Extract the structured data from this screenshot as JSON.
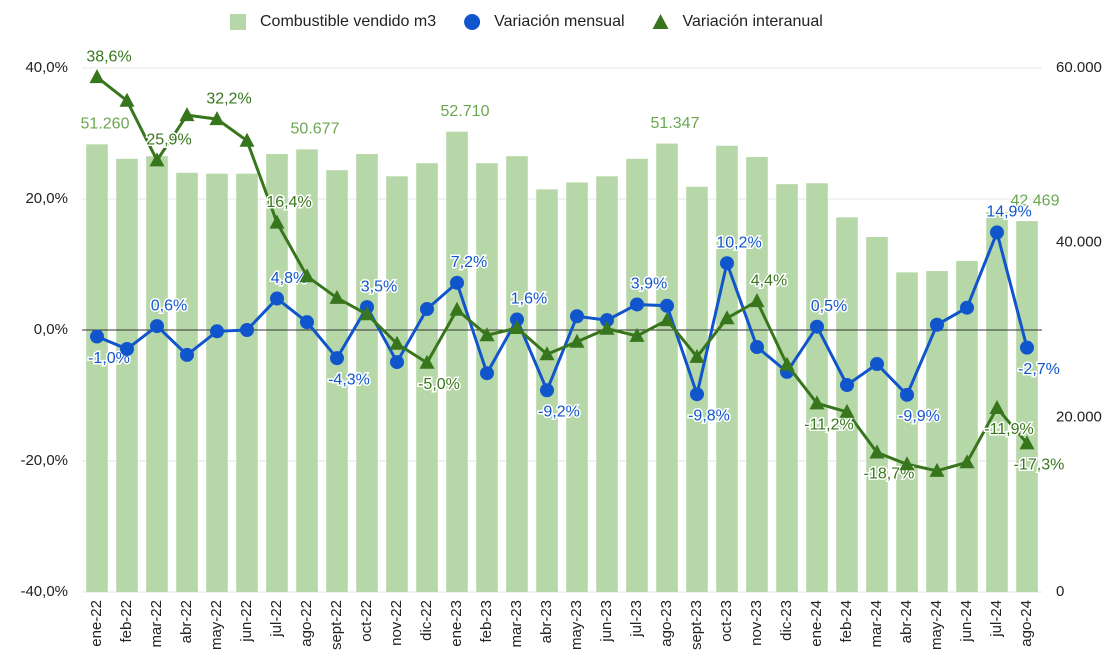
{
  "chart_data": {
    "type": "bar",
    "categories": [
      "ene-22",
      "feb-22",
      "mar-22",
      "abr-22",
      "may-22",
      "jun-22",
      "jul-22",
      "ago-22",
      "sept-22",
      "oct-22",
      "nov-22",
      "dic-22",
      "ene-23",
      "feb-23",
      "mar-23",
      "abr-23",
      "may-23",
      "jun-23",
      "jul-23",
      "ago-23",
      "sept-23",
      "oct-23",
      "nov-23",
      "dic-23",
      "ene-24",
      "feb-24",
      "mar-24",
      "abr-24",
      "may-24",
      "jun-24",
      "jul-24",
      "ago-24"
    ],
    "series": [
      {
        "name": "Combustible vendido m3",
        "type": "bar",
        "axis": "y2",
        "color": "#b6d7a8",
        "values": [
          51260,
          49600,
          49900,
          48000,
          47900,
          47900,
          50150,
          50677,
          48300,
          50150,
          47600,
          49100,
          52710,
          49100,
          49900,
          46100,
          46900,
          47600,
          49600,
          51347,
          46400,
          51100,
          49800,
          46700,
          46800,
          42900,
          40650,
          36600,
          36750,
          37900,
          43500,
          42469
        ],
        "value_labels": [
          "51.260",
          null,
          null,
          null,
          null,
          null,
          null,
          "50.677",
          null,
          null,
          null,
          null,
          "52.710",
          null,
          null,
          null,
          null,
          null,
          null,
          "51.347",
          null,
          null,
          null,
          null,
          null,
          null,
          null,
          null,
          null,
          null,
          null,
          "42.469"
        ]
      },
      {
        "name": "Variación mensual",
        "type": "line",
        "marker": "circle",
        "color": "#1155cc",
        "values": [
          -1.0,
          -2.9,
          0.6,
          -3.8,
          -0.2,
          0.0,
          4.8,
          1.2,
          -4.3,
          3.5,
          -4.9,
          3.2,
          7.2,
          -6.6,
          1.6,
          -9.2,
          2.1,
          1.5,
          3.9,
          3.7,
          -9.8,
          10.2,
          -2.6,
          -6.4,
          0.5,
          -8.4,
          -5.2,
          -9.9,
          0.8,
          3.4,
          14.9,
          -2.7
        ],
        "value_labels": [
          "-1,0%",
          null,
          "0,6%",
          null,
          null,
          null,
          "4,8%",
          null,
          "-4,3%",
          "3,5%",
          null,
          null,
          "7,2%",
          null,
          "1,6%",
          "-9,2%",
          null,
          null,
          "3,9%",
          null,
          "-9,8%",
          "10,2%",
          null,
          null,
          "0,5%",
          null,
          null,
          "-9,9%",
          null,
          null,
          "14,9%",
          "-2,7%"
        ]
      },
      {
        "name": "Variación interanual",
        "type": "line",
        "marker": "triangle",
        "color": "#38761d",
        "values": [
          38.6,
          35.0,
          25.9,
          32.8,
          32.2,
          28.9,
          16.4,
          8.2,
          4.9,
          2.4,
          -2.1,
          -5.0,
          3.1,
          -0.8,
          0.3,
          -3.7,
          -1.8,
          0.2,
          -0.9,
          1.5,
          -4.1,
          1.8,
          4.4,
          -5.3,
          -11.2,
          -12.5,
          -18.7,
          -20.5,
          -21.5,
          -20.2,
          -11.9,
          -17.3
        ],
        "value_labels": [
          "38,6%",
          null,
          "25,9%",
          null,
          "32,2%",
          null,
          "16,4%",
          null,
          null,
          null,
          null,
          "-5,0%",
          null,
          null,
          null,
          null,
          null,
          null,
          null,
          null,
          null,
          null,
          "4,4%",
          null,
          "-11,2%",
          null,
          "-18,7%",
          null,
          null,
          null,
          "-11,9%",
          "-17,3%"
        ]
      }
    ],
    "ylim": [
      -40,
      40
    ],
    "yticks": [
      {
        "value": -40,
        "label": "-40,0%"
      },
      {
        "value": -20,
        "label": "-20,0%"
      },
      {
        "value": 0,
        "label": "0,0%"
      },
      {
        "value": 20,
        "label": "20,0%"
      },
      {
        "value": 40,
        "label": "40,0%"
      }
    ],
    "y2lim": [
      0,
      60000
    ],
    "y2ticks": [
      0,
      {
        "value": 20000,
        "label": "20.000"
      },
      {
        "value": 40000,
        "label": "40.000"
      },
      {
        "value": 60000,
        "label": "60.000"
      }
    ],
    "grid": true,
    "legend": "top"
  }
}
